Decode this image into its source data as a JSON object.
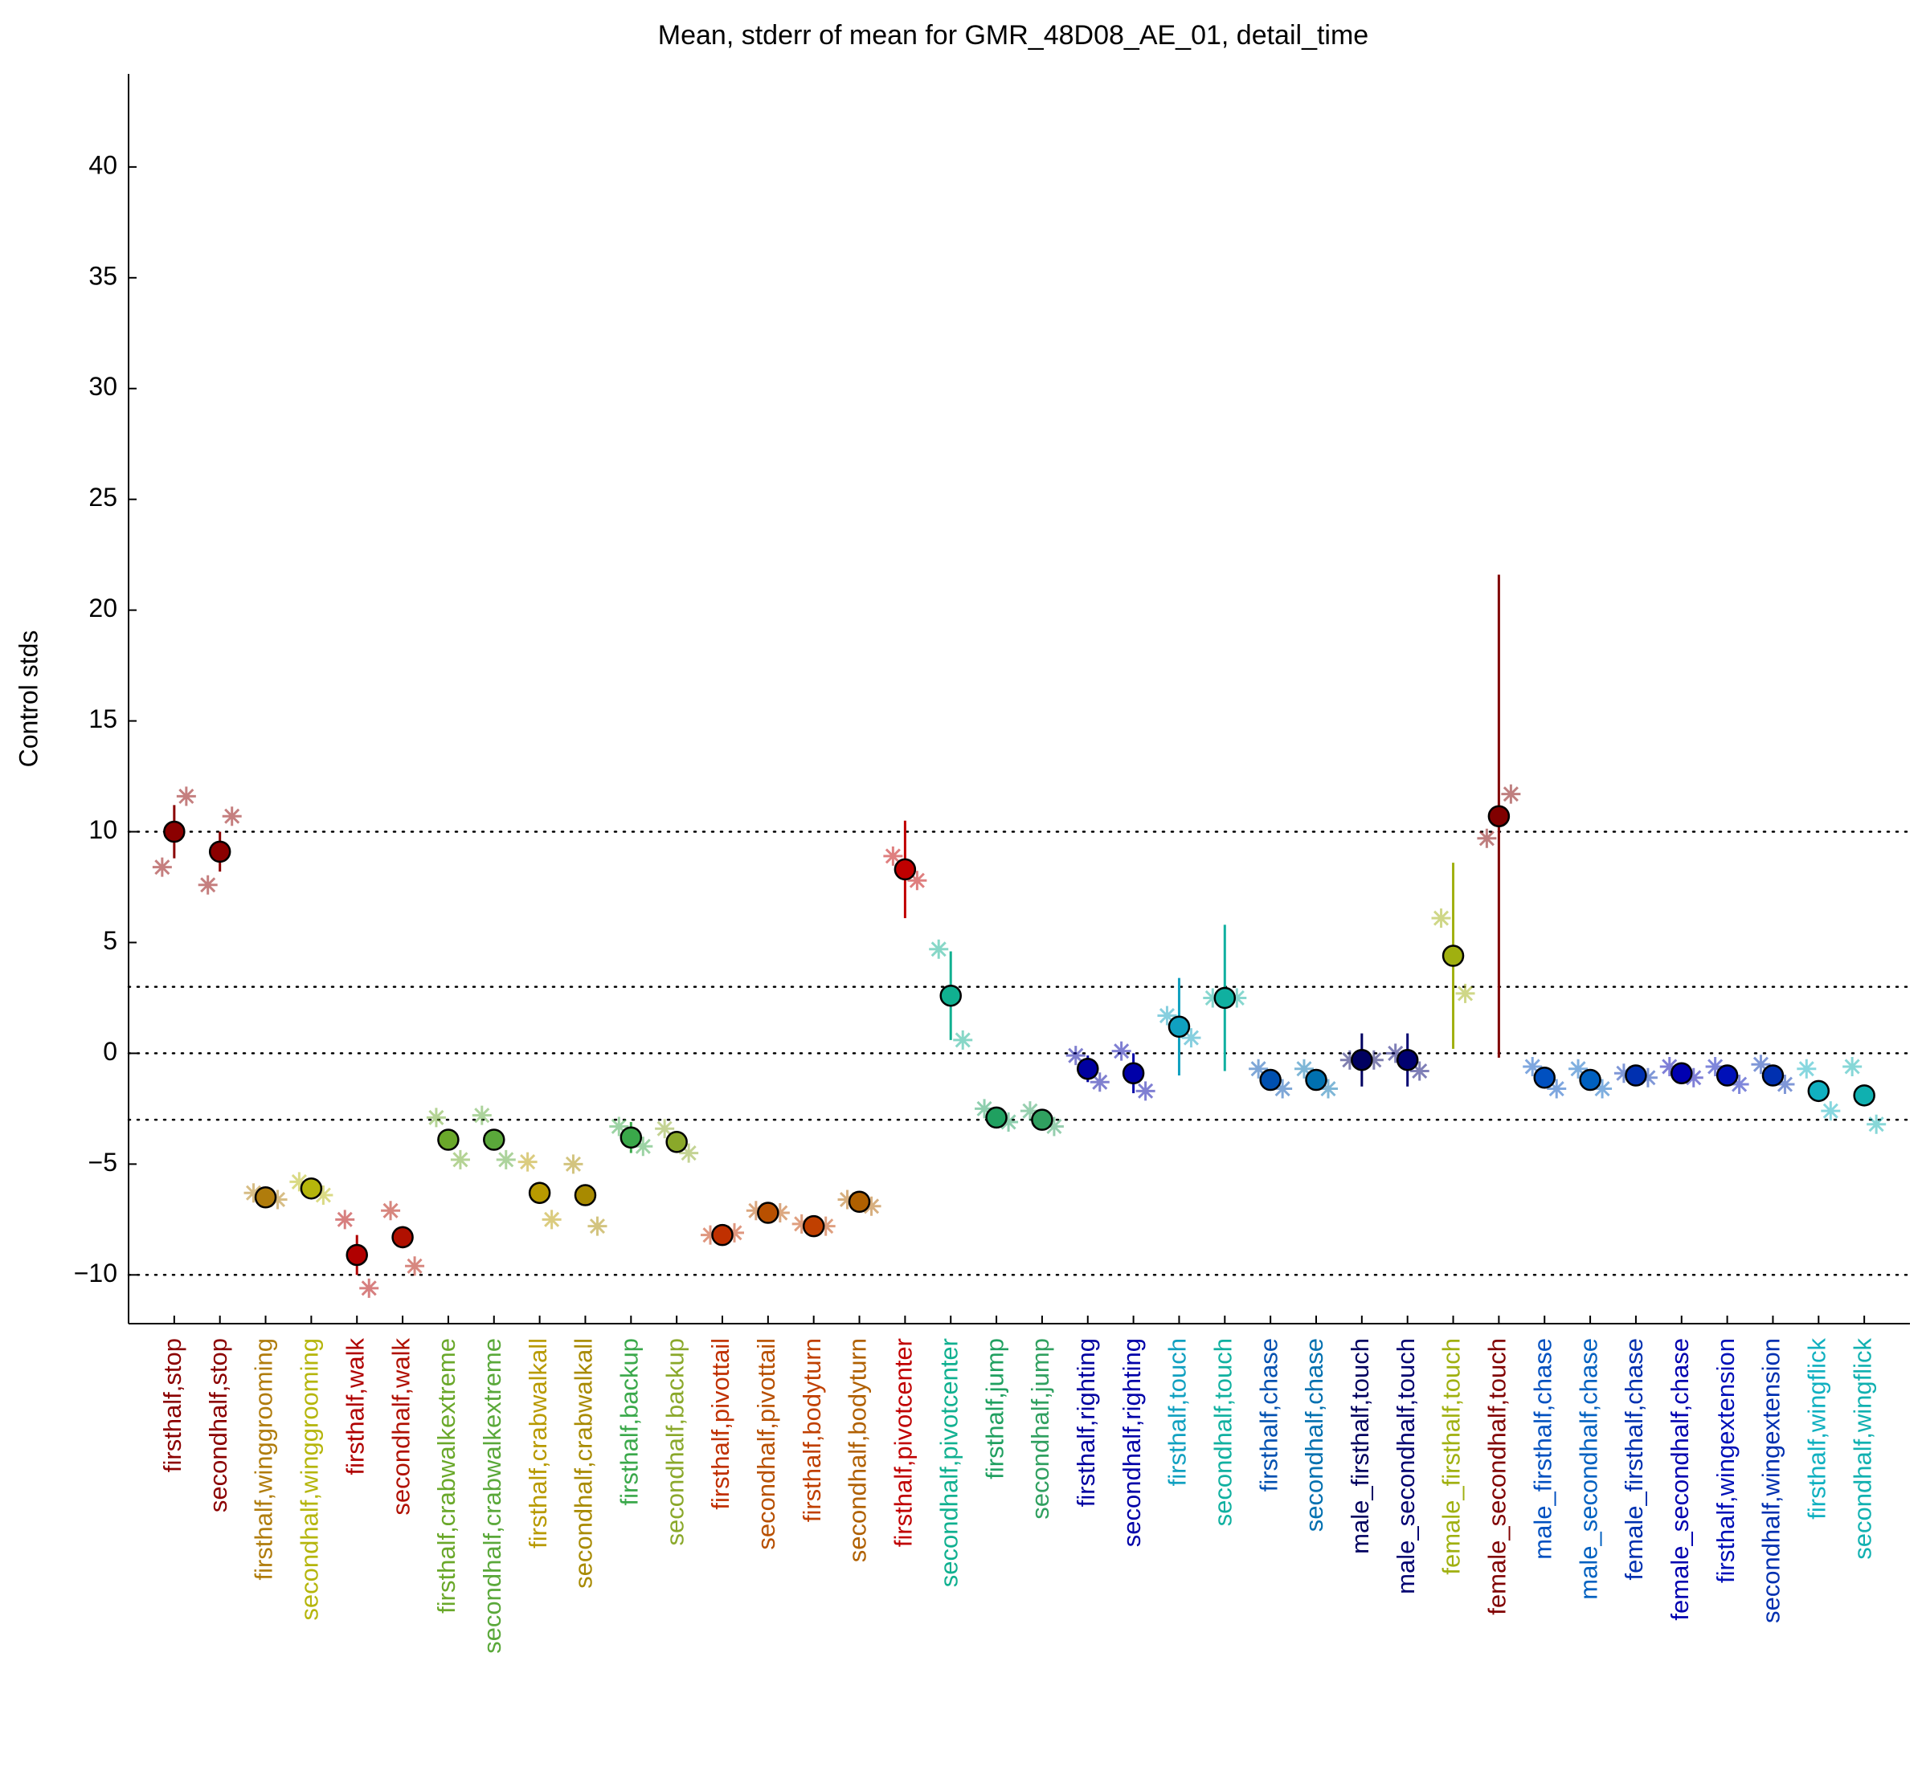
{
  "chart_data": {
    "type": "errorbar",
    "title": "Mean, stderr of mean for GMR_48D08_AE_01, detail_time",
    "y_label": "Control stds",
    "categories": [
      "firsthalf,stop",
      "secondhalf,stop",
      "firsthalf,winggrooming",
      "secondhalf,winggrooming",
      "firsthalf,walk",
      "secondhalf,walk",
      "firsthalf,crabwalkextreme",
      "secondhalf,crabwalkextreme",
      "firsthalf,crabwalkall",
      "secondhalf,crabwalkall",
      "firsthalf,backup",
      "secondhalf,backup",
      "firsthalf,pivottail",
      "secondhalf,pivottail",
      "firsthalf,bodyturn",
      "secondhalf,bodyturn",
      "firsthalf,pivotcenter",
      "secondhalf,pivotcenter",
      "firsthalf,jump",
      "secondhalf,jump",
      "firsthalf,righting",
      "secondhalf,righting",
      "firsthalf,touch",
      "secondhalf,touch",
      "firsthalf,chase",
      "secondhalf,chase",
      "male_firsthalf,touch",
      "male_secondhalf,touch",
      "female_firsthalf,touch",
      "female_secondhalf,touch",
      "male_firsthalf,chase",
      "male_secondhalf,chase",
      "female_firsthalf,chase",
      "female_secondhalf,chase",
      "firsthalf,wingextension",
      "secondhalf,wingextension",
      "firsthalf,wingflick",
      "secondhalf,wingflick"
    ],
    "values": [
      10.0,
      9.1,
      -6.5,
      -6.1,
      -9.1,
      -8.3,
      -3.9,
      -3.9,
      -6.3,
      -6.4,
      -3.8,
      -4.0,
      -8.2,
      -7.2,
      -7.8,
      -6.7,
      8.3,
      2.6,
      -2.9,
      -3.0,
      -0.7,
      -0.9,
      1.2,
      2.5,
      -1.2,
      -1.2,
      -0.3,
      -0.3,
      4.4,
      10.7,
      -1.1,
      -1.2,
      -1.0,
      -0.9,
      -1.0,
      -1.0,
      -1.7,
      -1.9
    ],
    "errors": [
      1.2,
      0.9,
      0.2,
      0.2,
      0.9,
      0.5,
      0.2,
      0.2,
      0.5,
      0.4,
      0.7,
      0.5,
      0.3,
      0.2,
      0.1,
      0.2,
      2.2,
      2.0,
      0.2,
      0.2,
      0.6,
      0.9,
      2.2,
      3.3,
      0.1,
      0.1,
      1.2,
      1.2,
      4.2,
      10.9,
      0.1,
      0.1,
      0.1,
      0.1,
      0.1,
      0.1,
      0.1,
      0.1
    ],
    "star_values": [
      [
        8.4,
        11.6
      ],
      [
        7.6,
        10.7
      ],
      [
        -6.3,
        -6.6
      ],
      [
        -5.8,
        -6.4
      ],
      [
        -7.5,
        -10.6
      ],
      [
        -7.1,
        -9.6
      ],
      [
        -2.9,
        -4.8
      ],
      [
        -2.8,
        -4.8
      ],
      [
        -4.9,
        -7.5
      ],
      [
        -5.0,
        -7.8
      ],
      [
        -3.3,
        -4.2
      ],
      [
        -3.4,
        -4.5
      ],
      [
        -8.2,
        -8.1
      ],
      [
        -7.1,
        -7.2
      ],
      [
        -7.7,
        -7.8
      ],
      [
        -6.6,
        -6.9
      ],
      [
        8.9,
        7.8
      ],
      [
        4.7,
        0.6
      ],
      [
        -2.5,
        -3.1
      ],
      [
        -2.6,
        -3.3
      ],
      [
        -0.1,
        -1.3
      ],
      [
        0.1,
        -1.7
      ],
      [
        1.7,
        0.7
      ],
      [
        2.5,
        2.5
      ],
      [
        -0.7,
        -1.6
      ],
      [
        -0.7,
        -1.6
      ],
      [
        -0.3,
        -0.3
      ],
      [
        0.0,
        -0.8
      ],
      [
        6.1,
        2.7
      ],
      [
        9.7,
        11.7
      ],
      [
        -0.6,
        -1.6
      ],
      [
        -0.7,
        -1.6
      ],
      [
        -0.9,
        -1.1
      ],
      [
        -0.6,
        -1.1
      ],
      [
        -0.6,
        -1.4
      ],
      [
        -0.5,
        -1.4
      ],
      [
        -0.7,
        -2.6
      ],
      [
        -0.6,
        -3.2
      ]
    ],
    "colors": [
      "#8b0000",
      "#8b0000",
      "#b07c0c",
      "#b5b50b",
      "#b00000",
      "#b01000",
      "#6aa82a",
      "#5aa83a",
      "#b89a00",
      "#a88a00",
      "#3aa84a",
      "#8aa82a",
      "#c03000",
      "#b85000",
      "#c04000",
      "#b06000",
      "#c00000",
      "#10b090",
      "#20a060",
      "#30a060",
      "#0000a0",
      "#0000a8",
      "#10a0c0",
      "#10b0a0",
      "#0050b0",
      "#0070b0",
      "#000060",
      "#000070",
      "#a0b010",
      "#800000",
      "#0050c0",
      "#0060c0",
      "#0030b0",
      "#0000b0",
      "#0010b8",
      "#0030b0",
      "#10b0c0",
      "#10b0b0"
    ],
    "ylim": [
      -12.2,
      44.2
    ],
    "yticks": [
      {
        "value": -10,
        "label": "−10"
      },
      {
        "value": -5,
        "label": "−5"
      },
      0,
      5,
      10,
      15,
      20,
      25,
      30,
      35,
      40
    ],
    "hlines": [
      10,
      3,
      0,
      -3,
      -10
    ]
  }
}
